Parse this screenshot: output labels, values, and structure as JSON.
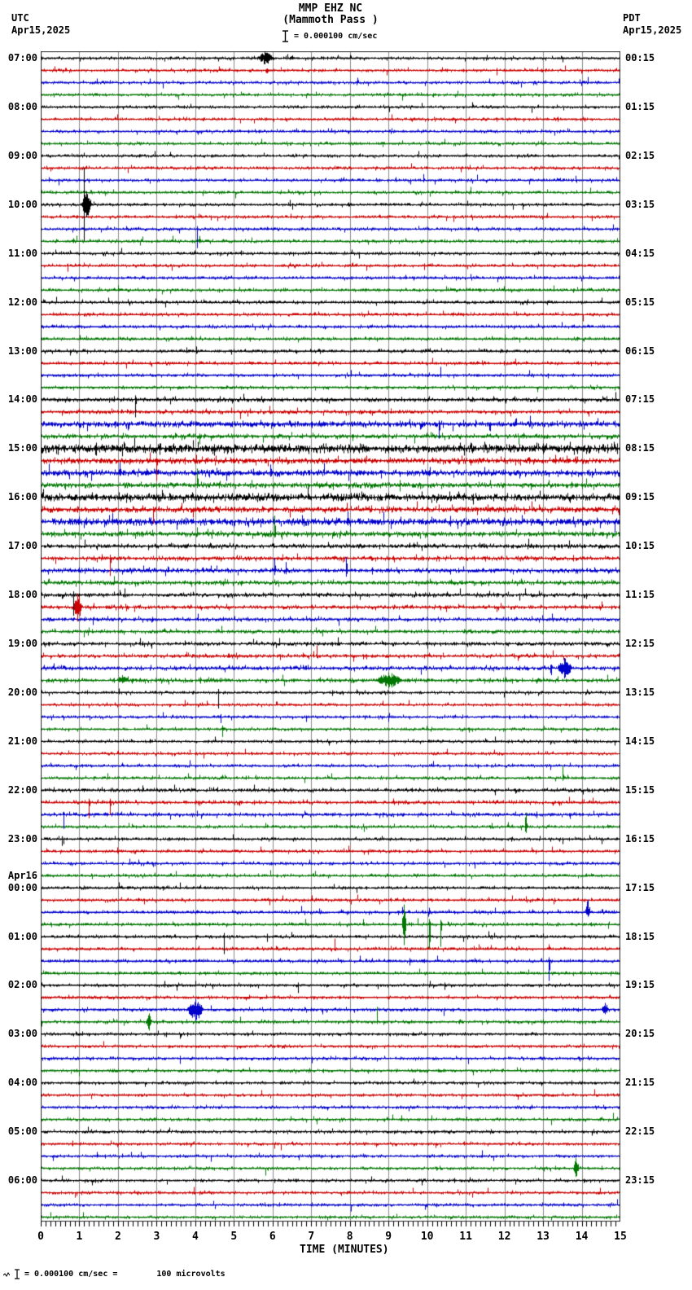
{
  "header": {
    "station_line1": "MMP EHZ NC",
    "station_line2": "(Mammoth Pass )",
    "scale_label": "= 0.000100 cm/sec",
    "left_tz": "UTC",
    "left_date": "Apr15,2025",
    "right_tz": "PDT",
    "right_date": "Apr15,2025"
  },
  "footer": {
    "axis_title": "TIME (MINUTES)",
    "scale_note_eq": "= 0.000100 cm/sec =",
    "scale_note_value": "100 microvolts"
  },
  "chart_data": {
    "type": "line",
    "variant": "helicorder",
    "title": "MMP EHZ NC (Mammoth Pass )",
    "xlabel": "TIME (MINUTES)",
    "x_range": [
      0,
      15
    ],
    "x_ticks": [
      "0",
      "1",
      "2",
      "3",
      "4",
      "5",
      "6",
      "7",
      "8",
      "9",
      "10",
      "11",
      "12",
      "13",
      "14",
      "15"
    ],
    "minor_ticks_per_minute": 8,
    "rows": 96,
    "traces_per_hour": 4,
    "minutes_per_row": 15,
    "utc_hour_labels": [
      "07:00",
      "08:00",
      "09:00",
      "10:00",
      "11:00",
      "12:00",
      "13:00",
      "14:00",
      "15:00",
      "16:00",
      "17:00",
      "18:00",
      "19:00",
      "20:00",
      "21:00",
      "22:00",
      "23:00",
      "00:00",
      "01:00",
      "02:00",
      "03:00",
      "04:00",
      "05:00",
      "06:00"
    ],
    "day_rollover": {
      "label": "Apr16",
      "before_hour_index": 17
    },
    "pdt_labels": [
      "00:15",
      "01:15",
      "02:15",
      "03:15",
      "04:15",
      "05:15",
      "06:15",
      "07:15",
      "08:15",
      "09:15",
      "10:15",
      "11:15",
      "12:15",
      "13:15",
      "14:15",
      "15:15",
      "16:15",
      "17:15",
      "18:15",
      "19:15",
      "20:15",
      "21:15",
      "22:15",
      "23:15"
    ],
    "trace_colors": [
      "#000000",
      "#cc0000",
      "#0000cc",
      "#007700"
    ],
    "grid_color": "#8a8a8a",
    "frame_color": "#2a2a2a",
    "tick_color": "#000000",
    "base_noise_amp": 1.0,
    "amp_overrides": {
      "28": 1.4,
      "29": 1.3,
      "30": 1.9,
      "31": 1.5,
      "32": 2.8,
      "33": 1.9,
      "34": 2.1,
      "35": 1.7,
      "36": 2.4,
      "37": 1.9,
      "38": 2.3,
      "39": 1.7,
      "40": 1.4,
      "41": 1.4,
      "42": 1.5,
      "43": 1.4,
      "44": 1.3,
      "45": 1.3,
      "46": 1.2,
      "47": 1.2,
      "48": 1.2,
      "49": 1.2,
      "50": 1.3,
      "51": 1.3,
      "60": 1.2,
      "61": 1.2,
      "62": 1.2
    },
    "events": [
      {
        "r": 0,
        "t": 5.8,
        "u": 8,
        "d": 8,
        "w": 0.45
      },
      {
        "r": 0,
        "t": 6.5,
        "u": 3,
        "d": 2,
        "w": 0.15
      },
      {
        "r": 1,
        "t": 5.85,
        "u": 2,
        "d": 4,
        "w": 0.1
      },
      {
        "r": 10,
        "t": 9.9,
        "u": 7,
        "d": 3,
        "w": 0.05
      },
      {
        "r": 10,
        "t": 13.85,
        "u": 5,
        "d": 2,
        "w": 0
      },
      {
        "r": 12,
        "t": 1.12,
        "u": 45,
        "d": 45,
        "w": 0.05
      },
      {
        "r": 12,
        "t": 1.18,
        "u": 16,
        "d": 16,
        "w": 0.3
      },
      {
        "r": 14,
        "t": 4.05,
        "u": 3,
        "d": 24,
        "w": 0
      },
      {
        "r": 15,
        "t": 4.1,
        "u": 6,
        "d": 3,
        "w": 0.08
      },
      {
        "r": 17,
        "t": 0.7,
        "u": 2,
        "d": 8,
        "w": 0
      },
      {
        "r": 26,
        "t": 10.35,
        "u": 10,
        "d": 3,
        "w": 0
      },
      {
        "r": 28,
        "t": 2.45,
        "u": 5,
        "d": 22,
        "w": 0.05
      },
      {
        "r": 30,
        "t": 10.3,
        "u": 4,
        "d": 18,
        "w": 0.05
      },
      {
        "r": 31,
        "t": 4.1,
        "u": 3,
        "d": 10,
        "w": 0
      },
      {
        "r": 32,
        "t": 2.1,
        "u": 3,
        "d": 10,
        "w": 0
      },
      {
        "r": 32,
        "t": 10.95,
        "u": 4,
        "d": 9,
        "w": 0
      },
      {
        "r": 33,
        "t": 3.0,
        "u": 3,
        "d": 25,
        "w": 0
      },
      {
        "r": 34,
        "t": 2.05,
        "u": 12,
        "d": 4,
        "w": 0.05
      },
      {
        "r": 34,
        "t": 5.95,
        "u": 10,
        "d": 5,
        "w": 0.05
      },
      {
        "r": 35,
        "t": 4.05,
        "u": 20,
        "d": 4,
        "w": 0.05
      },
      {
        "r": 37,
        "t": 2.9,
        "u": 3,
        "d": 18,
        "w": 0
      },
      {
        "r": 38,
        "t": 1.85,
        "u": 10,
        "d": 4,
        "w": 0.05
      },
      {
        "r": 38,
        "t": 7.95,
        "u": 12,
        "d": 5,
        "w": 0.08
      },
      {
        "r": 39,
        "t": 6.05,
        "u": 22,
        "d": 5,
        "w": 0.06
      },
      {
        "r": 41,
        "t": 1.8,
        "u": 4,
        "d": 22,
        "w": 0.05
      },
      {
        "r": 42,
        "t": 6.05,
        "u": 15,
        "d": 6,
        "w": 0.05
      },
      {
        "r": 42,
        "t": 6.35,
        "u": 10,
        "d": 5,
        "w": 0.05
      },
      {
        "r": 42,
        "t": 7.9,
        "u": 16,
        "d": 8,
        "w": 0.06
      },
      {
        "r": 44,
        "t": 0.85,
        "u": 4,
        "d": 26,
        "w": 0.04
      },
      {
        "r": 45,
        "t": 0.95,
        "u": 16,
        "d": 18,
        "w": 0.22
      },
      {
        "r": 49,
        "t": 7.15,
        "u": 12,
        "d": 3,
        "w": 0.04
      },
      {
        "r": 50,
        "t": 13.2,
        "u": 4,
        "d": 9,
        "w": 0.05
      },
      {
        "r": 50,
        "t": 13.55,
        "u": 12,
        "d": 13,
        "w": 0.4
      },
      {
        "r": 51,
        "t": 2.1,
        "u": 6,
        "d": 4,
        "w": 0.3
      },
      {
        "r": 51,
        "t": 9.0,
        "u": 9,
        "d": 10,
        "w": 0.7
      },
      {
        "r": 52,
        "t": 4.6,
        "u": 4,
        "d": 20,
        "w": 0.04
      },
      {
        "r": 54,
        "t": 4.65,
        "u": 3,
        "d": 8,
        "w": 0
      },
      {
        "r": 55,
        "t": 4.7,
        "u": 4,
        "d": 10,
        "w": 0.05
      },
      {
        "r": 59,
        "t": 13.5,
        "u": 15,
        "d": 4,
        "w": 0.05
      },
      {
        "r": 61,
        "t": 1.25,
        "u": 4,
        "d": 20,
        "w": 0.05
      },
      {
        "r": 61,
        "t": 1.8,
        "u": 4,
        "d": 16,
        "w": 0.05
      },
      {
        "r": 62,
        "t": 0.6,
        "u": 3,
        "d": 18,
        "w": 0.04
      },
      {
        "r": 63,
        "t": 12.55,
        "u": 17,
        "d": 8,
        "w": 0.07
      },
      {
        "r": 64,
        "t": 0.55,
        "u": 3,
        "d": 9,
        "w": 0
      },
      {
        "r": 68,
        "t": 3.6,
        "u": 6,
        "d": 2,
        "w": 0
      },
      {
        "r": 70,
        "t": 9.35,
        "u": 6,
        "d": 3,
        "w": 0.05
      },
      {
        "r": 70,
        "t": 10.05,
        "u": 5,
        "d": 3,
        "w": 0.05
      },
      {
        "r": 70,
        "t": 14.15,
        "u": 15,
        "d": 6,
        "w": 0.15
      },
      {
        "r": 71,
        "t": 8.35,
        "u": 6,
        "d": 2,
        "w": 0.05
      },
      {
        "r": 71,
        "t": 9.4,
        "u": 24,
        "d": 26,
        "w": 0.12
      },
      {
        "r": 71,
        "t": 10.05,
        "u": 6,
        "d": 30,
        "w": 0.06
      },
      {
        "r": 71,
        "t": 10.35,
        "u": 5,
        "d": 28,
        "w": 0.06
      },
      {
        "r": 72,
        "t": 4.75,
        "u": 4,
        "d": 22,
        "w": 0.04
      },
      {
        "r": 72,
        "t": 5.85,
        "u": 3,
        "d": 7,
        "w": 0
      },
      {
        "r": 73,
        "t": 7.6,
        "u": 12,
        "d": 3,
        "w": 0.04
      },
      {
        "r": 74,
        "t": 9.55,
        "u": 3,
        "d": 6,
        "w": 0
      },
      {
        "r": 74,
        "t": 13.15,
        "u": 4,
        "d": 25,
        "w": 0.05
      },
      {
        "r": 76,
        "t": 4.0,
        "u": 5,
        "d": 2,
        "w": 0
      },
      {
        "r": 76,
        "t": 6.65,
        "u": 3,
        "d": 10,
        "w": 0.04
      },
      {
        "r": 78,
        "t": 4.0,
        "u": 13,
        "d": 14,
        "w": 0.45
      },
      {
        "r": 78,
        "t": 14.6,
        "u": 8,
        "d": 6,
        "w": 0.2
      },
      {
        "r": 79,
        "t": 2.8,
        "u": 10,
        "d": 11,
        "w": 0.15
      },
      {
        "r": 79,
        "t": 8.7,
        "u": 18,
        "d": 3,
        "w": 0.04
      },
      {
        "r": 82,
        "t": 3.6,
        "u": 3,
        "d": 7,
        "w": 0.04
      },
      {
        "r": 91,
        "t": 13.85,
        "u": 12,
        "d": 11,
        "w": 0.15
      }
    ]
  }
}
